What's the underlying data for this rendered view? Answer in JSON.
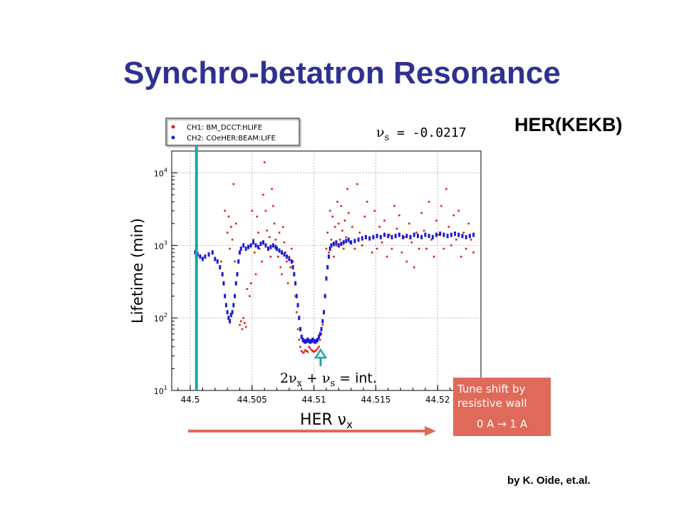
{
  "slide": {
    "title": "Synchro-betatron Resonance",
    "machine": "HER(KEKB)",
    "credit": "by K. Oide, et.al."
  },
  "callout": {
    "line1": "Tune shift by",
    "line2": "resistive wall",
    "range": "0 A → 1 A"
  },
  "colors": {
    "title": "#2e3192",
    "ch1": "#e11b1b",
    "ch2": "#1b1bd6",
    "marker": "#1fa5a5",
    "arrow": "#e06a5a"
  },
  "chart_data": {
    "type": "scatter",
    "ylabel": "Lifetime (min)",
    "xlabel": "HER ν",
    "xlabel_sub": "x",
    "annotation_nus": "ν",
    "annotation_nus_sub": "s",
    "annotation_nus_value": " = -0.0217",
    "annotation_res": "2ν",
    "annotation_res_sub1": "x",
    "annotation_res_mid": " + ν",
    "annotation_res_sub2": "s",
    "annotation_res_end": " = int.",
    "x_range": [
      44.4985,
      44.5235
    ],
    "y_log": true,
    "y_range": [
      10,
      20000
    ],
    "y_ticks": [
      {
        "value": 10,
        "label_base": "10",
        "label_exp": "1"
      },
      {
        "value": 100,
        "label_base": "10",
        "label_exp": "2"
      },
      {
        "value": 1000,
        "label_base": "10",
        "label_exp": "3"
      },
      {
        "value": 10000,
        "label_base": "10",
        "label_exp": "4"
      }
    ],
    "x_ticks": [
      {
        "value": 44.5,
        "label": "44.5"
      },
      {
        "value": 44.505,
        "label": "44.505"
      },
      {
        "value": 44.51,
        "label": "44.51"
      },
      {
        "value": 44.515,
        "label": "44.515"
      },
      {
        "value": 44.52,
        "label": "44.52"
      }
    ],
    "grid": true,
    "legend_position": "top-left",
    "resonance_marker_x": 44.5107,
    "vertical_marker_x": 44.5005,
    "series": [
      {
        "name": "CH1: BM_DCCT:HLIFE",
        "color": "#e11b1b",
        "points": [
          [
            44.5025,
            600
          ],
          [
            44.5028,
            3000
          ],
          [
            44.503,
            1500
          ],
          [
            44.5031,
            2500
          ],
          [
            44.5032,
            900
          ],
          [
            44.5033,
            1800
          ],
          [
            44.5034,
            1200
          ],
          [
            44.5035,
            7000
          ],
          [
            44.5036,
            600
          ],
          [
            44.5037,
            2000
          ],
          [
            44.5038,
            400
          ],
          [
            44.504,
            80
          ],
          [
            44.5041,
            90
          ],
          [
            44.5042,
            70
          ],
          [
            44.5043,
            100
          ],
          [
            44.5044,
            85
          ],
          [
            44.5045,
            75
          ],
          [
            44.5046,
            250
          ],
          [
            44.5048,
            200
          ],
          [
            44.5049,
            300
          ],
          [
            44.505,
            3000
          ],
          [
            44.5051,
            1200
          ],
          [
            44.5052,
            800
          ],
          [
            44.5053,
            400
          ],
          [
            44.5054,
            2500
          ],
          [
            44.5055,
            1500
          ],
          [
            44.5056,
            900
          ],
          [
            44.5057,
            1100
          ],
          [
            44.5058,
            600
          ],
          [
            44.5059,
            5000
          ],
          [
            44.506,
            14000
          ],
          [
            44.5061,
            3000
          ],
          [
            44.5062,
            1600
          ],
          [
            44.5063,
            900
          ],
          [
            44.5064,
            1300
          ],
          [
            44.5065,
            700
          ],
          [
            44.5066,
            6000
          ],
          [
            44.5067,
            3500
          ],
          [
            44.5068,
            2000
          ],
          [
            44.5069,
            1200
          ],
          [
            44.507,
            900
          ],
          [
            44.5071,
            700
          ],
          [
            44.5072,
            1500
          ],
          [
            44.5073,
            500
          ],
          [
            44.5074,
            400
          ],
          [
            44.5075,
            1800
          ],
          [
            44.5076,
            1100
          ],
          [
            44.5077,
            800
          ],
          [
            44.5078,
            600
          ],
          [
            44.5079,
            300
          ],
          [
            44.508,
            700
          ],
          [
            44.5081,
            500
          ],
          [
            44.5082,
            900
          ],
          [
            44.5083,
            600
          ],
          [
            44.5084,
            400
          ],
          [
            44.5085,
            200
          ],
          [
            44.5086,
            120
          ],
          [
            44.5087,
            70
          ],
          [
            44.5088,
            50
          ],
          [
            44.5089,
            40
          ],
          [
            44.509,
            35
          ],
          [
            44.5091,
            33
          ],
          [
            44.5092,
            34
          ],
          [
            44.5093,
            36
          ],
          [
            44.5094,
            35
          ],
          [
            44.5095,
            34
          ],
          [
            44.5096,
            40
          ],
          [
            44.5097,
            38
          ],
          [
            44.5098,
            36
          ],
          [
            44.5099,
            35
          ],
          [
            44.51,
            34
          ],
          [
            44.5101,
            35
          ],
          [
            44.5102,
            36
          ],
          [
            44.5103,
            38
          ],
          [
            44.5104,
            40
          ],
          [
            44.5105,
            50
          ],
          [
            44.5106,
            60
          ],
          [
            44.5107,
            80
          ],
          [
            44.5108,
            120
          ],
          [
            44.5109,
            200
          ],
          [
            44.511,
            900
          ],
          [
            44.5111,
            1500
          ],
          [
            44.5112,
            800
          ],
          [
            44.5113,
            3000
          ],
          [
            44.5114,
            1200
          ],
          [
            44.5115,
            2500
          ],
          [
            44.5116,
            700
          ],
          [
            44.5117,
            1800
          ],
          [
            44.5118,
            1000
          ],
          [
            44.5119,
            4000
          ],
          [
            44.512,
            2000
          ],
          [
            44.5121,
            1200
          ],
          [
            44.5122,
            3500
          ],
          [
            44.5123,
            1600
          ],
          [
            44.5124,
            900
          ],
          [
            44.5125,
            2200
          ],
          [
            44.5126,
            1300
          ],
          [
            44.5127,
            6000
          ],
          [
            44.5128,
            2800
          ],
          [
            44.5129,
            1100
          ],
          [
            44.5131,
            1800
          ],
          [
            44.5133,
            900
          ],
          [
            44.5135,
            7000
          ],
          [
            44.5137,
            1500
          ],
          [
            44.5139,
            1000
          ],
          [
            44.5141,
            2500
          ],
          [
            44.5143,
            4000
          ],
          [
            44.5145,
            1200
          ],
          [
            44.5147,
            800
          ],
          [
            44.5149,
            3000
          ],
          [
            44.5151,
            900
          ],
          [
            44.5153,
            1800
          ],
          [
            44.5155,
            1100
          ],
          [
            44.5157,
            2200
          ],
          [
            44.5159,
            700
          ],
          [
            44.5161,
            1400
          ],
          [
            44.5163,
            900
          ],
          [
            44.5165,
            3500
          ],
          [
            44.5167,
            1700
          ],
          [
            44.5169,
            2600
          ],
          [
            44.5171,
            800
          ],
          [
            44.5173,
            1300
          ],
          [
            44.5175,
            600
          ],
          [
            44.5177,
            2000
          ],
          [
            44.5179,
            1100
          ],
          [
            44.5181,
            500
          ],
          [
            44.5183,
            1500
          ],
          [
            44.5185,
            900
          ],
          [
            44.5187,
            2800
          ],
          [
            44.5189,
            1600
          ],
          [
            44.5191,
            900
          ],
          [
            44.5193,
            4000
          ],
          [
            44.5195,
            1200
          ],
          [
            44.5197,
            700
          ],
          [
            44.5199,
            2200
          ],
          [
            44.5201,
            1400
          ],
          [
            44.5203,
            3500
          ],
          [
            44.5205,
            900
          ],
          [
            44.5207,
            6000
          ],
          [
            44.5209,
            1800
          ],
          [
            44.5211,
            1000
          ],
          [
            44.5213,
            2600
          ],
          [
            44.5215,
            1200
          ],
          [
            44.5217,
            3000
          ],
          [
            44.5219,
            700
          ],
          [
            44.5221,
            1500
          ],
          [
            44.5223,
            900
          ],
          [
            44.5225,
            2000
          ],
          [
            44.5227,
            1200
          ],
          [
            44.5229,
            800
          ]
        ]
      },
      {
        "name": "CH2: COeHER:BEAM:LIFE",
        "color": "#1b1bd6",
        "points": [
          [
            44.5004,
            800
          ],
          [
            44.5006,
            750
          ],
          [
            44.5008,
            700
          ],
          [
            44.501,
            650
          ],
          [
            44.5012,
            700
          ],
          [
            44.5015,
            750
          ],
          [
            44.5018,
            800
          ],
          [
            44.502,
            650
          ],
          [
            44.5022,
            600
          ],
          [
            44.5024,
            500
          ],
          [
            44.5026,
            400
          ],
          [
            44.5027,
            300
          ],
          [
            44.5028,
            200
          ],
          [
            44.5029,
            150
          ],
          [
            44.503,
            120
          ],
          [
            44.5031,
            100
          ],
          [
            44.5032,
            90
          ],
          [
            44.5033,
            110
          ],
          [
            44.5034,
            120
          ],
          [
            44.5035,
            150
          ],
          [
            44.5036,
            200
          ],
          [
            44.5037,
            300
          ],
          [
            44.5038,
            400
          ],
          [
            44.5039,
            600
          ],
          [
            44.504,
            800
          ],
          [
            44.5041,
            900
          ],
          [
            44.5043,
            1000
          ],
          [
            44.5045,
            900
          ],
          [
            44.5047,
            950
          ],
          [
            44.5049,
            1000
          ],
          [
            44.5051,
            1100
          ],
          [
            44.5053,
            1000
          ],
          [
            44.5055,
            950
          ],
          [
            44.5057,
            1050
          ],
          [
            44.5059,
            1100
          ],
          [
            44.5061,
            1000
          ],
          [
            44.5063,
            900
          ],
          [
            44.5065,
            950
          ],
          [
            44.5067,
            1000
          ],
          [
            44.5069,
            950
          ],
          [
            44.507,
            900
          ],
          [
            44.5072,
            850
          ],
          [
            44.5074,
            800
          ],
          [
            44.5076,
            750
          ],
          [
            44.5078,
            700
          ],
          [
            44.508,
            650
          ],
          [
            44.5082,
            600
          ],
          [
            44.5083,
            500
          ],
          [
            44.5084,
            400
          ],
          [
            44.5085,
            300
          ],
          [
            44.5086,
            200
          ],
          [
            44.5087,
            150
          ],
          [
            44.5088,
            100
          ],
          [
            44.5089,
            70
          ],
          [
            44.509,
            55
          ],
          [
            44.5091,
            50
          ],
          [
            44.5092,
            48
          ],
          [
            44.5093,
            47
          ],
          [
            44.5094,
            48
          ],
          [
            44.5095,
            50
          ],
          [
            44.5096,
            48
          ],
          [
            44.5097,
            47
          ],
          [
            44.5098,
            48
          ],
          [
            44.5099,
            50
          ],
          [
            44.51,
            48
          ],
          [
            44.5101,
            47
          ],
          [
            44.5102,
            48
          ],
          [
            44.5103,
            50
          ],
          [
            44.5104,
            55
          ],
          [
            44.5105,
            60
          ],
          [
            44.5106,
            70
          ],
          [
            44.5107,
            90
          ],
          [
            44.5108,
            120
          ],
          [
            44.5109,
            200
          ],
          [
            44.511,
            350
          ],
          [
            44.5111,
            500
          ],
          [
            44.5112,
            700
          ],
          [
            44.5113,
            900
          ],
          [
            44.5114,
            1000
          ],
          [
            44.5116,
            1050
          ],
          [
            44.5118,
            1100
          ],
          [
            44.512,
            1000
          ],
          [
            44.5122,
            1050
          ],
          [
            44.5124,
            1100
          ],
          [
            44.5126,
            1150
          ],
          [
            44.5128,
            1200
          ],
          [
            44.513,
            1100
          ],
          [
            44.5133,
            1150
          ],
          [
            44.5136,
            1200
          ],
          [
            44.5139,
            1250
          ],
          [
            44.5142,
            1300
          ],
          [
            44.5145,
            1250
          ],
          [
            44.5148,
            1300
          ],
          [
            44.5151,
            1350
          ],
          [
            44.5154,
            1300
          ],
          [
            44.5157,
            1400
          ],
          [
            44.516,
            1350
          ],
          [
            44.5163,
            1300
          ],
          [
            44.5166,
            1350
          ],
          [
            44.5169,
            1400
          ],
          [
            44.5172,
            1300
          ],
          [
            44.5175,
            1350
          ],
          [
            44.5178,
            1300
          ],
          [
            44.5181,
            1400
          ],
          [
            44.5184,
            1350
          ],
          [
            44.5187,
            1300
          ],
          [
            44.519,
            1400
          ],
          [
            44.5193,
            1350
          ],
          [
            44.5196,
            1300
          ],
          [
            44.5199,
            1400
          ],
          [
            44.5202,
            1450
          ],
          [
            44.5205,
            1400
          ],
          [
            44.5208,
            1350
          ],
          [
            44.5211,
            1400
          ],
          [
            44.5214,
            1450
          ],
          [
            44.5217,
            1400
          ],
          [
            44.522,
            1350
          ],
          [
            44.5223,
            1300
          ],
          [
            44.5226,
            1350
          ],
          [
            44.5229,
            1400
          ]
        ]
      }
    ]
  }
}
